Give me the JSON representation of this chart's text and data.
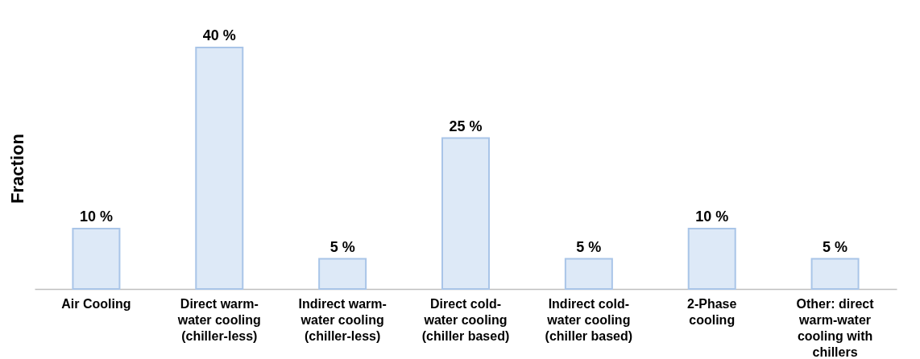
{
  "chart_data": {
    "type": "bar",
    "ylabel": "Fraction",
    "categories": [
      "Air Cooling",
      "Direct warm-water cooling (chiller-less)",
      "Indirect warm-water cooling (chiller-less)",
      "Direct cold-water cooling (chiller based)",
      "Indirect cold-water cooling (chiller based)",
      "2-Phase cooling",
      "Other: direct warm-water cooling with chillers"
    ],
    "values": [
      10,
      40,
      5,
      25,
      5,
      10,
      5
    ],
    "value_labels": [
      "10 %",
      "40 %",
      "5 %",
      "25 %",
      "5 %",
      "10 %",
      "5 %"
    ],
    "color": "#dde9f7"
  }
}
